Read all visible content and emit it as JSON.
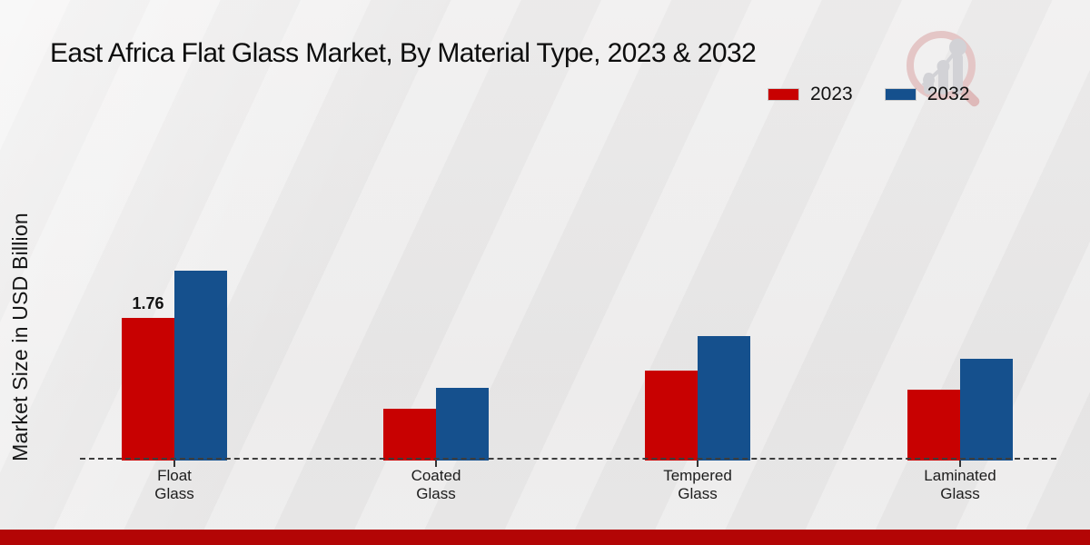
{
  "header": {
    "title": "East Africa Flat Glass Market, By Material Type, 2023 & 2032"
  },
  "icons": {
    "logo": "magnifier-bar-chart-watermark",
    "logo_ring_color": "#e4c6c6",
    "logo_glyph_color": "#d2d2d6"
  },
  "footer": {
    "accent_color": "#b30505"
  },
  "chart_data": {
    "type": "bar",
    "title": "East Africa Flat Glass Market, By Material Type, 2023 & 2032",
    "categories": [
      "Float Glass",
      "Coated Glass",
      "Tempered Glass",
      "Laminated Glass"
    ],
    "series": [
      {
        "name": "2023",
        "color": "#c80101",
        "values": [
          1.76,
          0.64,
          1.11,
          0.87
        ]
      },
      {
        "name": "2032",
        "color": "#15508d",
        "values": [
          2.34,
          0.9,
          1.54,
          1.25
        ]
      }
    ],
    "xlabel": "",
    "ylabel": "Market Size in USD Billion",
    "ylim": [
      0,
      2.6
    ],
    "grid": false,
    "axis_style": "dashed-baseline-only",
    "legend_position": "top-right",
    "annotations": [
      {
        "series_index": 0,
        "category_index": 0,
        "text": "1.76"
      }
    ]
  }
}
